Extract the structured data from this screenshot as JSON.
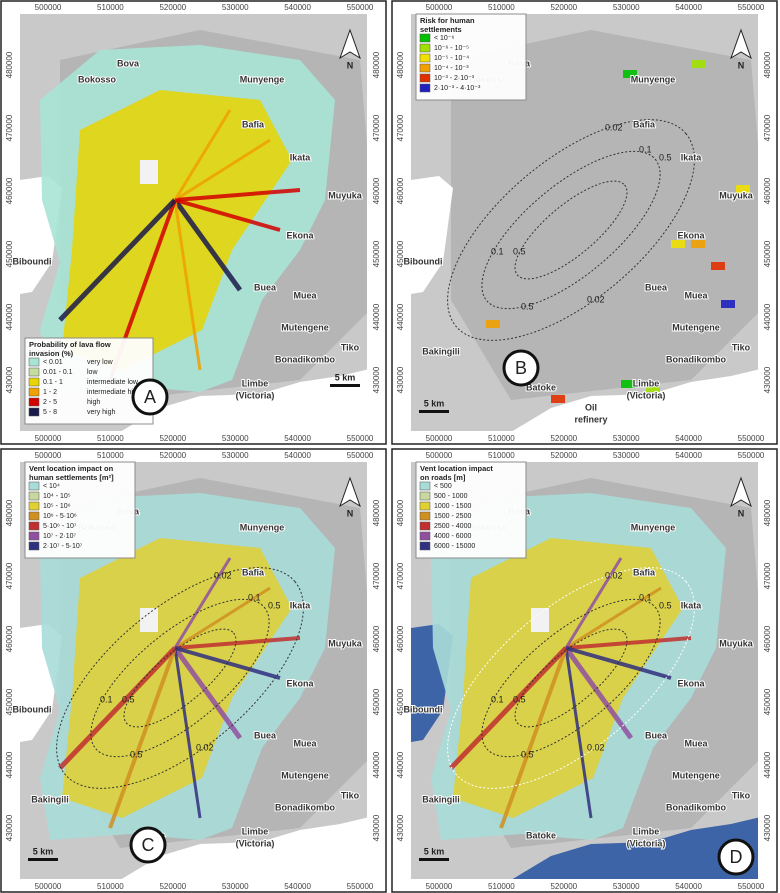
{
  "axis": {
    "x": [
      "500000",
      "510000",
      "520000",
      "530000",
      "540000",
      "550000"
    ],
    "y": [
      "480000",
      "470000",
      "460000",
      "450000",
      "440000",
      "430000"
    ]
  },
  "north": "N",
  "scale": "5 km",
  "places": [
    "Bova",
    "Bokosso",
    "Munyenge",
    "Bafia",
    "Ikata",
    "Muyuka",
    "Ekona",
    "Biboundi",
    "Buea",
    "Muea",
    "Mutengene",
    "Tiko",
    "Bakingili",
    "Bonadikombo",
    "Limbe",
    "(Victoria)",
    "Batoke",
    "Oil",
    "refinery"
  ],
  "contour_labels": [
    "0.02",
    "0.1",
    "0.5",
    "0.1",
    "0.5",
    "0.5",
    "0.02"
  ],
  "panels": [
    {
      "letter": "A",
      "legend": {
        "title": [
          "Probability of lava flow",
          "invasion (%)"
        ],
        "items": [
          {
            "range": "< 0.01",
            "class": "very low",
            "color": "#a8e4d4"
          },
          {
            "range": "0.01 - 0.1",
            "class": "low",
            "color": "#c4dca0"
          },
          {
            "range": "0.1 - 1",
            "class": "intermediate low",
            "color": "#e8d400"
          },
          {
            "range": "1 - 2",
            "class": "intermediate high",
            "color": "#f0a000"
          },
          {
            "range": "2 - 5",
            "class": "high",
            "color": "#d40000"
          },
          {
            "range": "5 - 8",
            "class": "very high",
            "color": "#1a1a4a"
          }
        ]
      }
    },
    {
      "letter": "B",
      "legend": {
        "title": [
          "Risk for human",
          "settlements"
        ],
        "items": [
          {
            "range": "< 10⁻⁶",
            "color": "#00c000"
          },
          {
            "range": "10⁻⁶ - 10⁻⁵",
            "color": "#a0e000"
          },
          {
            "range": "10⁻⁵ - 10⁻⁴",
            "color": "#f0e000"
          },
          {
            "range": "10⁻⁴ - 10⁻³",
            "color": "#f0a000"
          },
          {
            "range": "10⁻³ - 2·10⁻³",
            "color": "#e03000"
          },
          {
            "range": "2·10⁻³ - 4·10⁻³",
            "color": "#2020c0"
          }
        ]
      }
    },
    {
      "letter": "C",
      "legend": {
        "title": [
          "Vent location impact on",
          "human settlements [m²]"
        ],
        "items": [
          {
            "range": "< 10⁴",
            "color": "#a8dcd8"
          },
          {
            "range": "10⁴ - 10⁵",
            "color": "#c8d8a0"
          },
          {
            "range": "10⁵ - 10⁶",
            "color": "#e0d030"
          },
          {
            "range": "10⁶ - 5·10⁶",
            "color": "#d09020"
          },
          {
            "range": "5·10⁶ - 10⁷",
            "color": "#c03030"
          },
          {
            "range": "10⁷ - 2·10⁷",
            "color": "#9050a0"
          },
          {
            "range": "2·10⁷ - 5·10⁷",
            "color": "#303080"
          }
        ]
      }
    },
    {
      "letter": "D",
      "legend": {
        "title": [
          "Vent location impact",
          "on roads [m]"
        ],
        "items": [
          {
            "range": "< 500",
            "color": "#a8dcd8"
          },
          {
            "range": "500 - 1000",
            "color": "#c8d8a0"
          },
          {
            "range": "1000 - 1500",
            "color": "#e0d030"
          },
          {
            "range": "1500 - 2500",
            "color": "#d09020"
          },
          {
            "range": "2500 - 4000",
            "color": "#c03030"
          },
          {
            "range": "4000 - 6000",
            "color": "#9050a0"
          },
          {
            "range": "6000 - 15000",
            "color": "#303080"
          }
        ]
      }
    }
  ]
}
